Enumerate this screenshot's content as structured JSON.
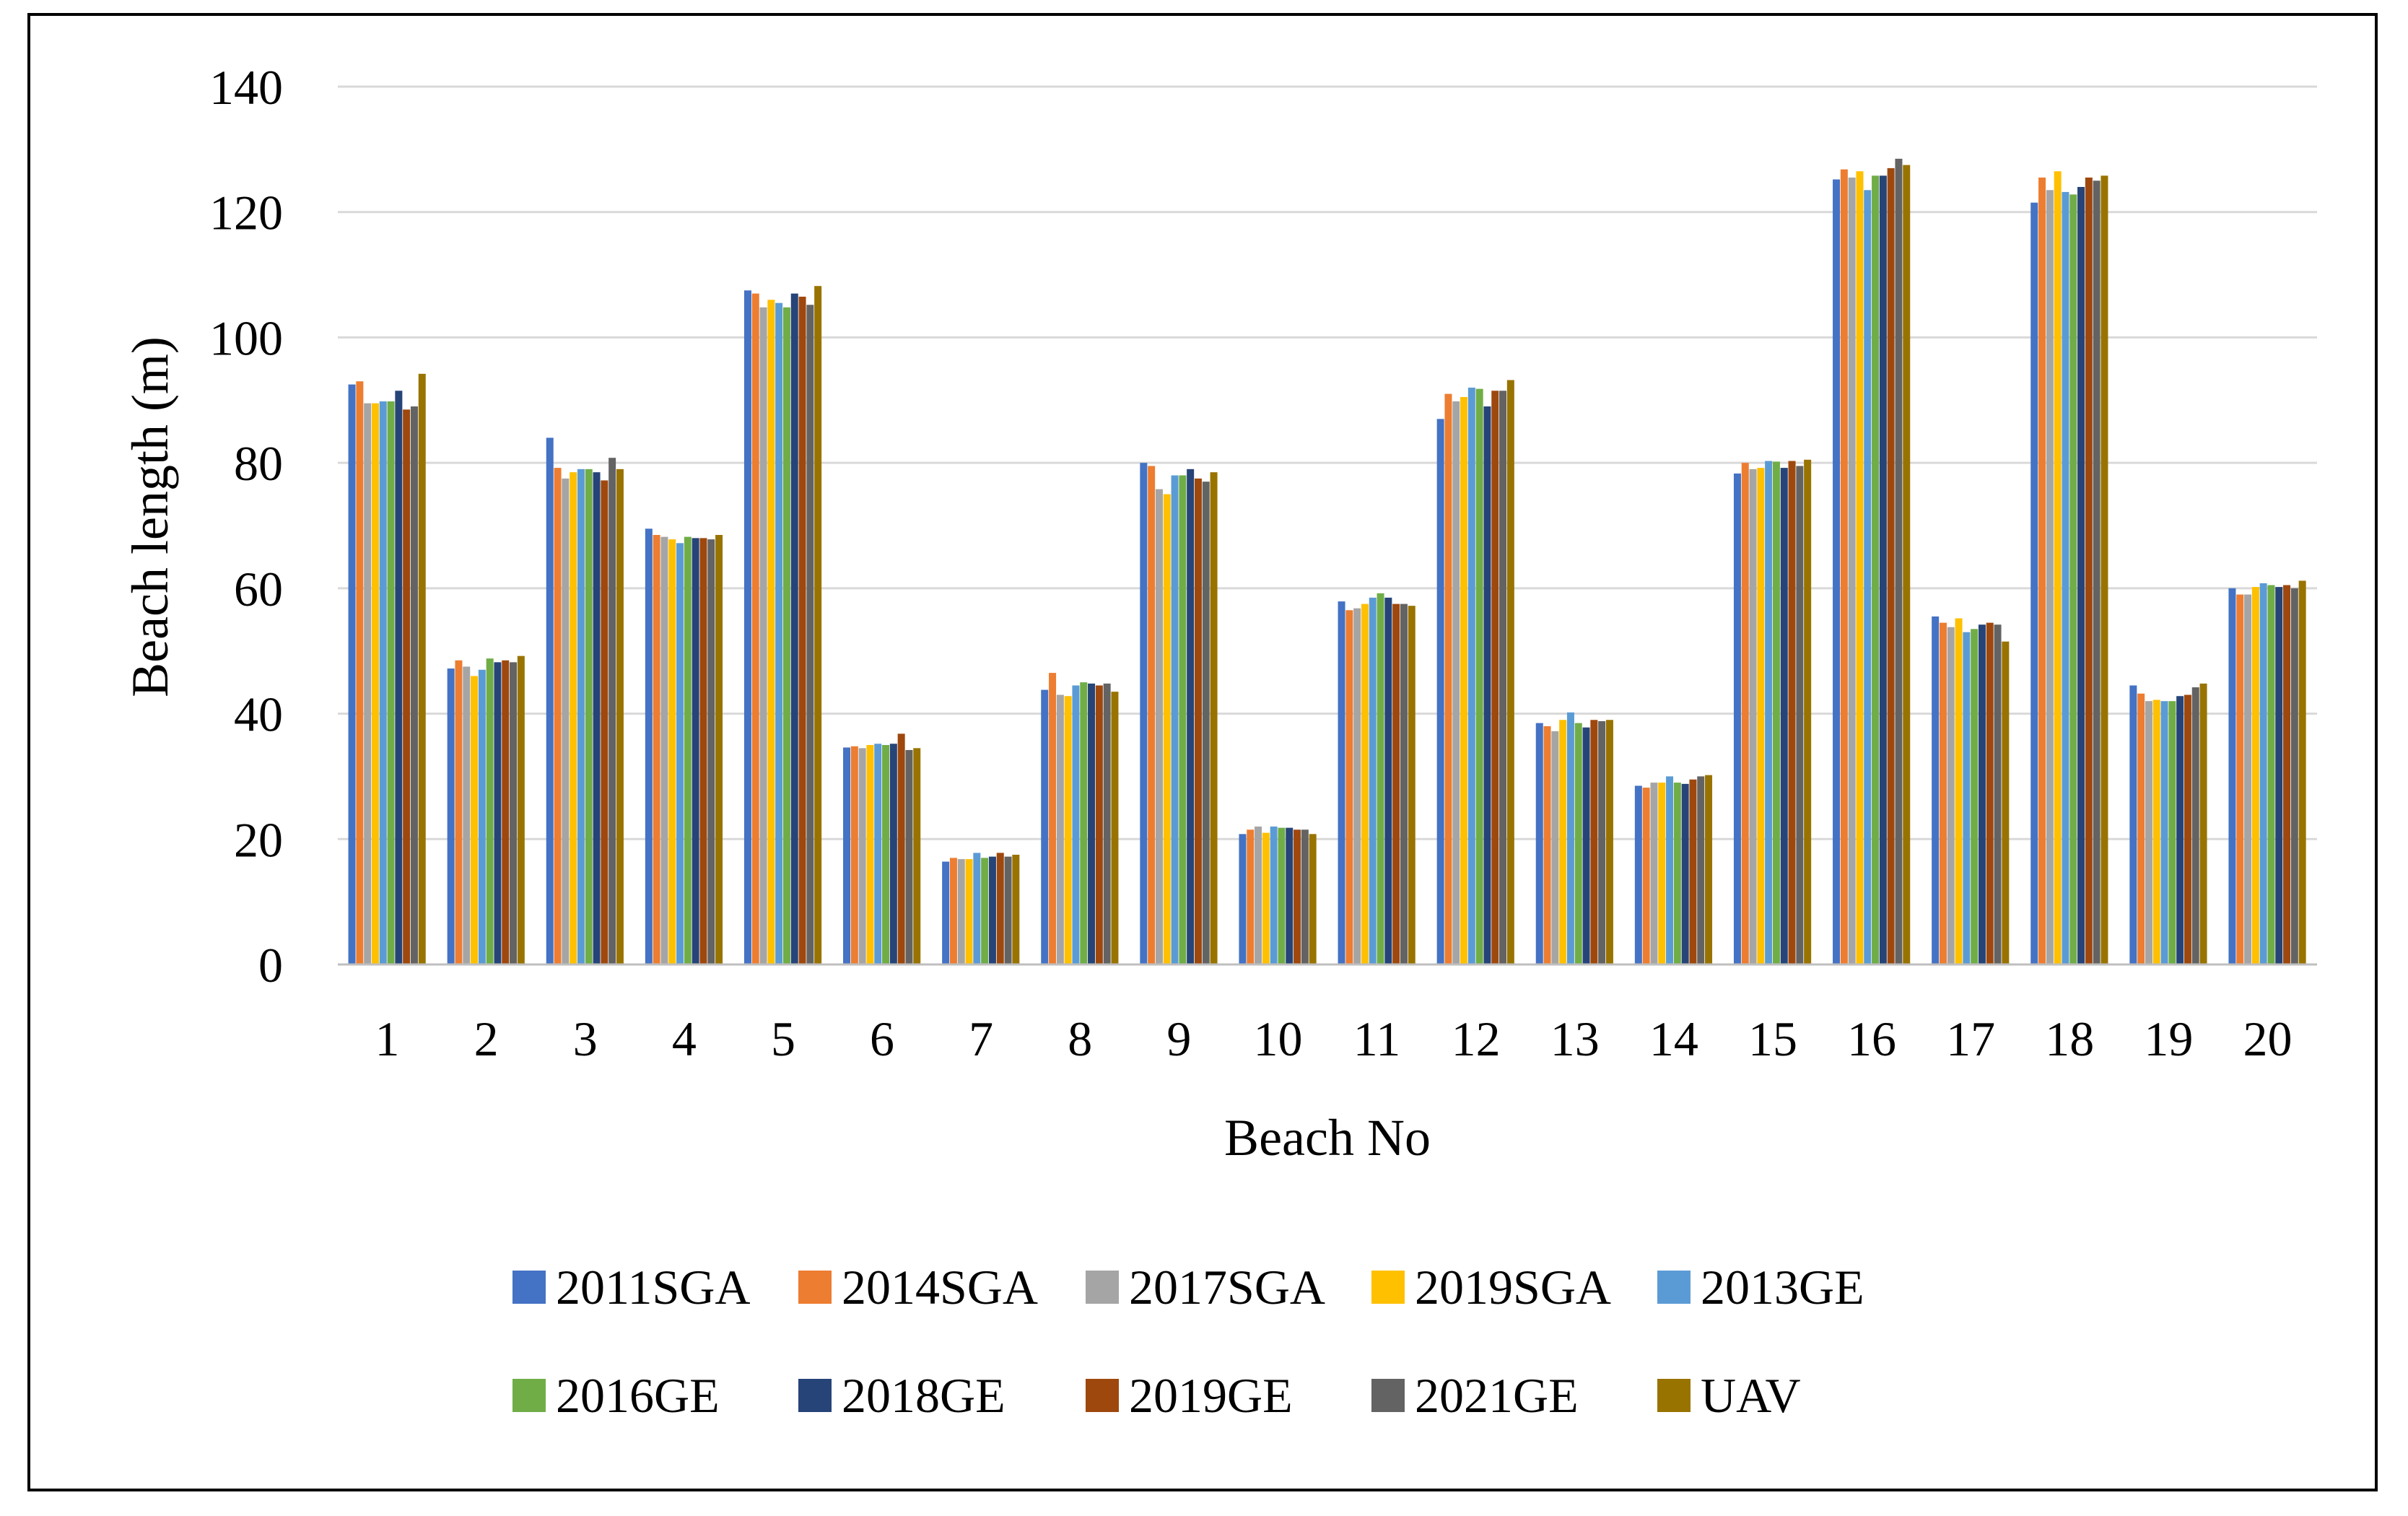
{
  "chart_data": {
    "type": "bar",
    "title": "",
    "xlabel": "Beach No",
    "ylabel": "Beach length (m)",
    "ylim": [
      0,
      140
    ],
    "yticks": [
      0,
      20,
      40,
      60,
      80,
      100,
      120,
      140
    ],
    "grid": true,
    "legend_position": "bottom",
    "categories": [
      "1",
      "2",
      "3",
      "4",
      "5",
      "6",
      "7",
      "8",
      "9",
      "10",
      "11",
      "12",
      "13",
      "14",
      "15",
      "16",
      "17",
      "18",
      "19",
      "20"
    ],
    "series": [
      {
        "name": "2011SGA",
        "color": "#4472C4",
        "values": [
          92.5,
          47.2,
          84.0,
          69.5,
          107.5,
          34.6,
          16.4,
          43.8,
          80.0,
          20.8,
          57.9,
          87.0,
          38.5,
          28.5,
          78.3,
          125.2,
          55.5,
          121.5,
          44.5,
          60.0
        ]
      },
      {
        "name": "2014SGA",
        "color": "#ED7D31",
        "values": [
          93.0,
          48.5,
          79.2,
          68.5,
          107.0,
          34.8,
          17.0,
          46.5,
          79.5,
          21.5,
          56.5,
          91.0,
          38.0,
          28.2,
          80.0,
          126.8,
          54.5,
          125.5,
          43.2,
          59.0
        ]
      },
      {
        "name": "2017SGA",
        "color": "#A5A5A5",
        "values": [
          89.5,
          47.5,
          77.5,
          68.2,
          104.8,
          34.5,
          16.8,
          43.0,
          75.8,
          22.0,
          56.8,
          89.8,
          37.2,
          29.0,
          79.0,
          125.5,
          53.8,
          123.5,
          42.0,
          59.0
        ]
      },
      {
        "name": "2019SGA",
        "color": "#FFC000",
        "values": [
          89.5,
          46.0,
          78.5,
          67.8,
          106.0,
          35.0,
          16.8,
          42.8,
          75.0,
          21.0,
          57.5,
          90.5,
          39.0,
          29.0,
          79.2,
          126.5,
          55.2,
          126.5,
          42.2,
          60.2
        ]
      },
      {
        "name": "2013GE",
        "color": "#5B9BD5",
        "values": [
          89.8,
          47.0,
          79.0,
          67.2,
          105.5,
          35.2,
          17.8,
          44.5,
          78.0,
          22.0,
          58.5,
          92.0,
          40.2,
          30.0,
          80.3,
          123.5,
          53.0,
          123.2,
          42.0,
          60.8
        ]
      },
      {
        "name": "2016GE",
        "color": "#70AD47",
        "values": [
          89.8,
          48.8,
          79.0,
          68.2,
          104.8,
          35.0,
          17.0,
          45.0,
          78.0,
          21.8,
          59.2,
          91.8,
          38.5,
          29.0,
          80.2,
          125.8,
          53.5,
          122.8,
          42.0,
          60.5
        ]
      },
      {
        "name": "2018GE",
        "color": "#264478",
        "values": [
          91.5,
          48.2,
          78.5,
          68.0,
          107.0,
          35.2,
          17.2,
          44.8,
          79.0,
          21.8,
          58.5,
          89.0,
          37.8,
          28.8,
          79.2,
          125.8,
          54.2,
          124.0,
          42.8,
          60.2
        ]
      },
      {
        "name": "2019GE",
        "color": "#9E480E",
        "values": [
          88.5,
          48.5,
          77.2,
          68.0,
          106.5,
          36.8,
          17.8,
          44.5,
          77.5,
          21.5,
          57.5,
          91.5,
          39.0,
          29.5,
          80.3,
          127.0,
          54.5,
          125.5,
          43.0,
          60.5
        ]
      },
      {
        "name": "2021GE",
        "color": "#636363",
        "values": [
          89.0,
          48.2,
          80.8,
          67.8,
          105.2,
          34.2,
          17.2,
          44.8,
          77.0,
          21.5,
          57.5,
          91.5,
          38.8,
          30.0,
          79.5,
          128.5,
          54.2,
          125.0,
          44.2,
          60.0
        ]
      },
      {
        "name": "UAV",
        "color": "#997300",
        "values": [
          94.2,
          49.2,
          79.0,
          68.5,
          108.2,
          34.5,
          17.5,
          43.5,
          78.5,
          20.8,
          57.2,
          93.2,
          39.0,
          30.2,
          80.5,
          127.5,
          51.5,
          125.8,
          44.8,
          61.2
        ]
      }
    ]
  }
}
